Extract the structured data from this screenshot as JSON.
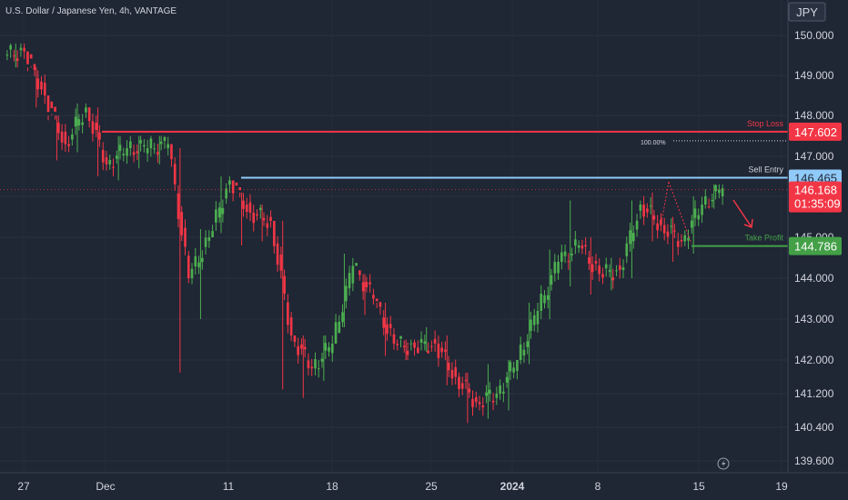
{
  "header": {
    "symbol_title": "U.S. Dollar / Japanese Yen, 4h, VANTAGE"
  },
  "currency_badge": "JPY",
  "colors": {
    "background": "#1f2634",
    "up": "#4caf50",
    "down": "#f23645",
    "axis_text": "#d1d4dc",
    "stop_loss": "#f23645",
    "sell_entry": "#90caf9",
    "take_profit": "#43a047"
  },
  "chart_data": {
    "type": "candlestick",
    "y_ticks": [
      "150.000",
      "149.000",
      "148.000",
      "147.000",
      "146.000",
      "145.000",
      "144.000",
      "143.000",
      "142.000",
      "141.200",
      "140.400",
      "139.600"
    ],
    "x_ticks": [
      "27",
      "Dec",
      "11",
      "18",
      "25",
      "2024",
      "8",
      "15",
      "19"
    ],
    "levels": [
      {
        "name": "Stop Loss",
        "value": "147.602",
        "color": "#f23645"
      },
      {
        "name": "Sell Entry",
        "value": "146.465",
        "color": "#90caf9"
      },
      {
        "name": "Take Profit",
        "value": "144.786",
        "color": "#43a047"
      }
    ],
    "fib_label": "100.00%",
    "current_price": {
      "value": "146.168",
      "countdown": "01:35:09"
    },
    "series": [
      {
        "date": "Nov 27",
        "close": 149.6,
        "low": 149.2,
        "high": 149.8
      },
      {
        "date": "Nov 28",
        "close": 148.5,
        "low": 148.2,
        "high": 149.2
      },
      {
        "date": "Nov 29",
        "close": 147.3,
        "low": 146.9,
        "high": 148.0
      },
      {
        "date": "Nov 30",
        "close": 148.2,
        "low": 147.1,
        "high": 148.3
      },
      {
        "date": "Dec 1",
        "close": 146.8,
        "low": 146.5,
        "high": 148.2
      },
      {
        "date": "Dec 4",
        "close": 147.2,
        "low": 146.4,
        "high": 147.5
      },
      {
        "date": "Dec 5",
        "close": 147.2,
        "low": 146.7,
        "high": 147.5
      },
      {
        "date": "Dec 6",
        "close": 147.3,
        "low": 146.8,
        "high": 147.5
      },
      {
        "date": "Dec 7",
        "close": 144.0,
        "low": 141.7,
        "high": 147.2
      },
      {
        "date": "Dec 8",
        "close": 145.0,
        "low": 143.0,
        "high": 145.2
      },
      {
        "date": "Dec 11",
        "close": 146.4,
        "low": 145.1,
        "high": 146.5
      },
      {
        "date": "Dec 12",
        "close": 145.6,
        "low": 144.8,
        "high": 146.1
      },
      {
        "date": "Dec 13",
        "close": 145.4,
        "low": 144.9,
        "high": 145.8
      },
      {
        "date": "Dec 14",
        "close": 142.6,
        "low": 141.3,
        "high": 145.4
      },
      {
        "date": "Dec 15",
        "close": 141.8,
        "low": 141.1,
        "high": 142.6
      },
      {
        "date": "Dec 18",
        "close": 142.4,
        "low": 141.5,
        "high": 142.6
      },
      {
        "date": "Dec 19",
        "close": 144.3,
        "low": 142.8,
        "high": 144.6
      },
      {
        "date": "Dec 20",
        "close": 143.5,
        "low": 143.1,
        "high": 144.1
      },
      {
        "date": "Dec 21",
        "close": 142.4,
        "low": 142.1,
        "high": 143.4
      },
      {
        "date": "Dec 22",
        "close": 142.3,
        "low": 142.0,
        "high": 142.5
      },
      {
        "date": "Dec 26",
        "close": 142.4,
        "low": 142.2,
        "high": 142.8
      },
      {
        "date": "Dec 27",
        "close": 141.6,
        "low": 141.4,
        "high": 142.6
      },
      {
        "date": "Dec 28",
        "close": 141.0,
        "low": 140.5,
        "high": 141.7
      },
      {
        "date": "Dec 29",
        "close": 141.2,
        "low": 140.6,
        "high": 141.9
      },
      {
        "date": "Jan 2",
        "close": 142.0,
        "low": 140.8,
        "high": 142.0
      },
      {
        "date": "Jan 3",
        "close": 143.2,
        "low": 141.9,
        "high": 143.4
      },
      {
        "date": "Jan 4",
        "close": 144.4,
        "low": 143.0,
        "high": 144.7
      },
      {
        "date": "Jan 5",
        "close": 144.8,
        "low": 143.8,
        "high": 145.9
      },
      {
        "date": "Jan 8",
        "close": 144.1,
        "low": 143.6,
        "high": 145.0
      },
      {
        "date": "Jan 9",
        "close": 144.2,
        "low": 143.7,
        "high": 144.5
      },
      {
        "date": "Jan 10",
        "close": 145.8,
        "low": 144.0,
        "high": 145.9
      },
      {
        "date": "Jan 11",
        "close": 145.3,
        "low": 144.9,
        "high": 146.1
      },
      {
        "date": "Jan 12",
        "close": 144.9,
        "low": 144.4,
        "high": 145.5
      },
      {
        "date": "Jan 15",
        "close": 145.8,
        "low": 144.6,
        "high": 146.0
      },
      {
        "date": "Jan 16",
        "close": 146.2,
        "low": 145.7,
        "high": 146.3
      }
    ]
  }
}
